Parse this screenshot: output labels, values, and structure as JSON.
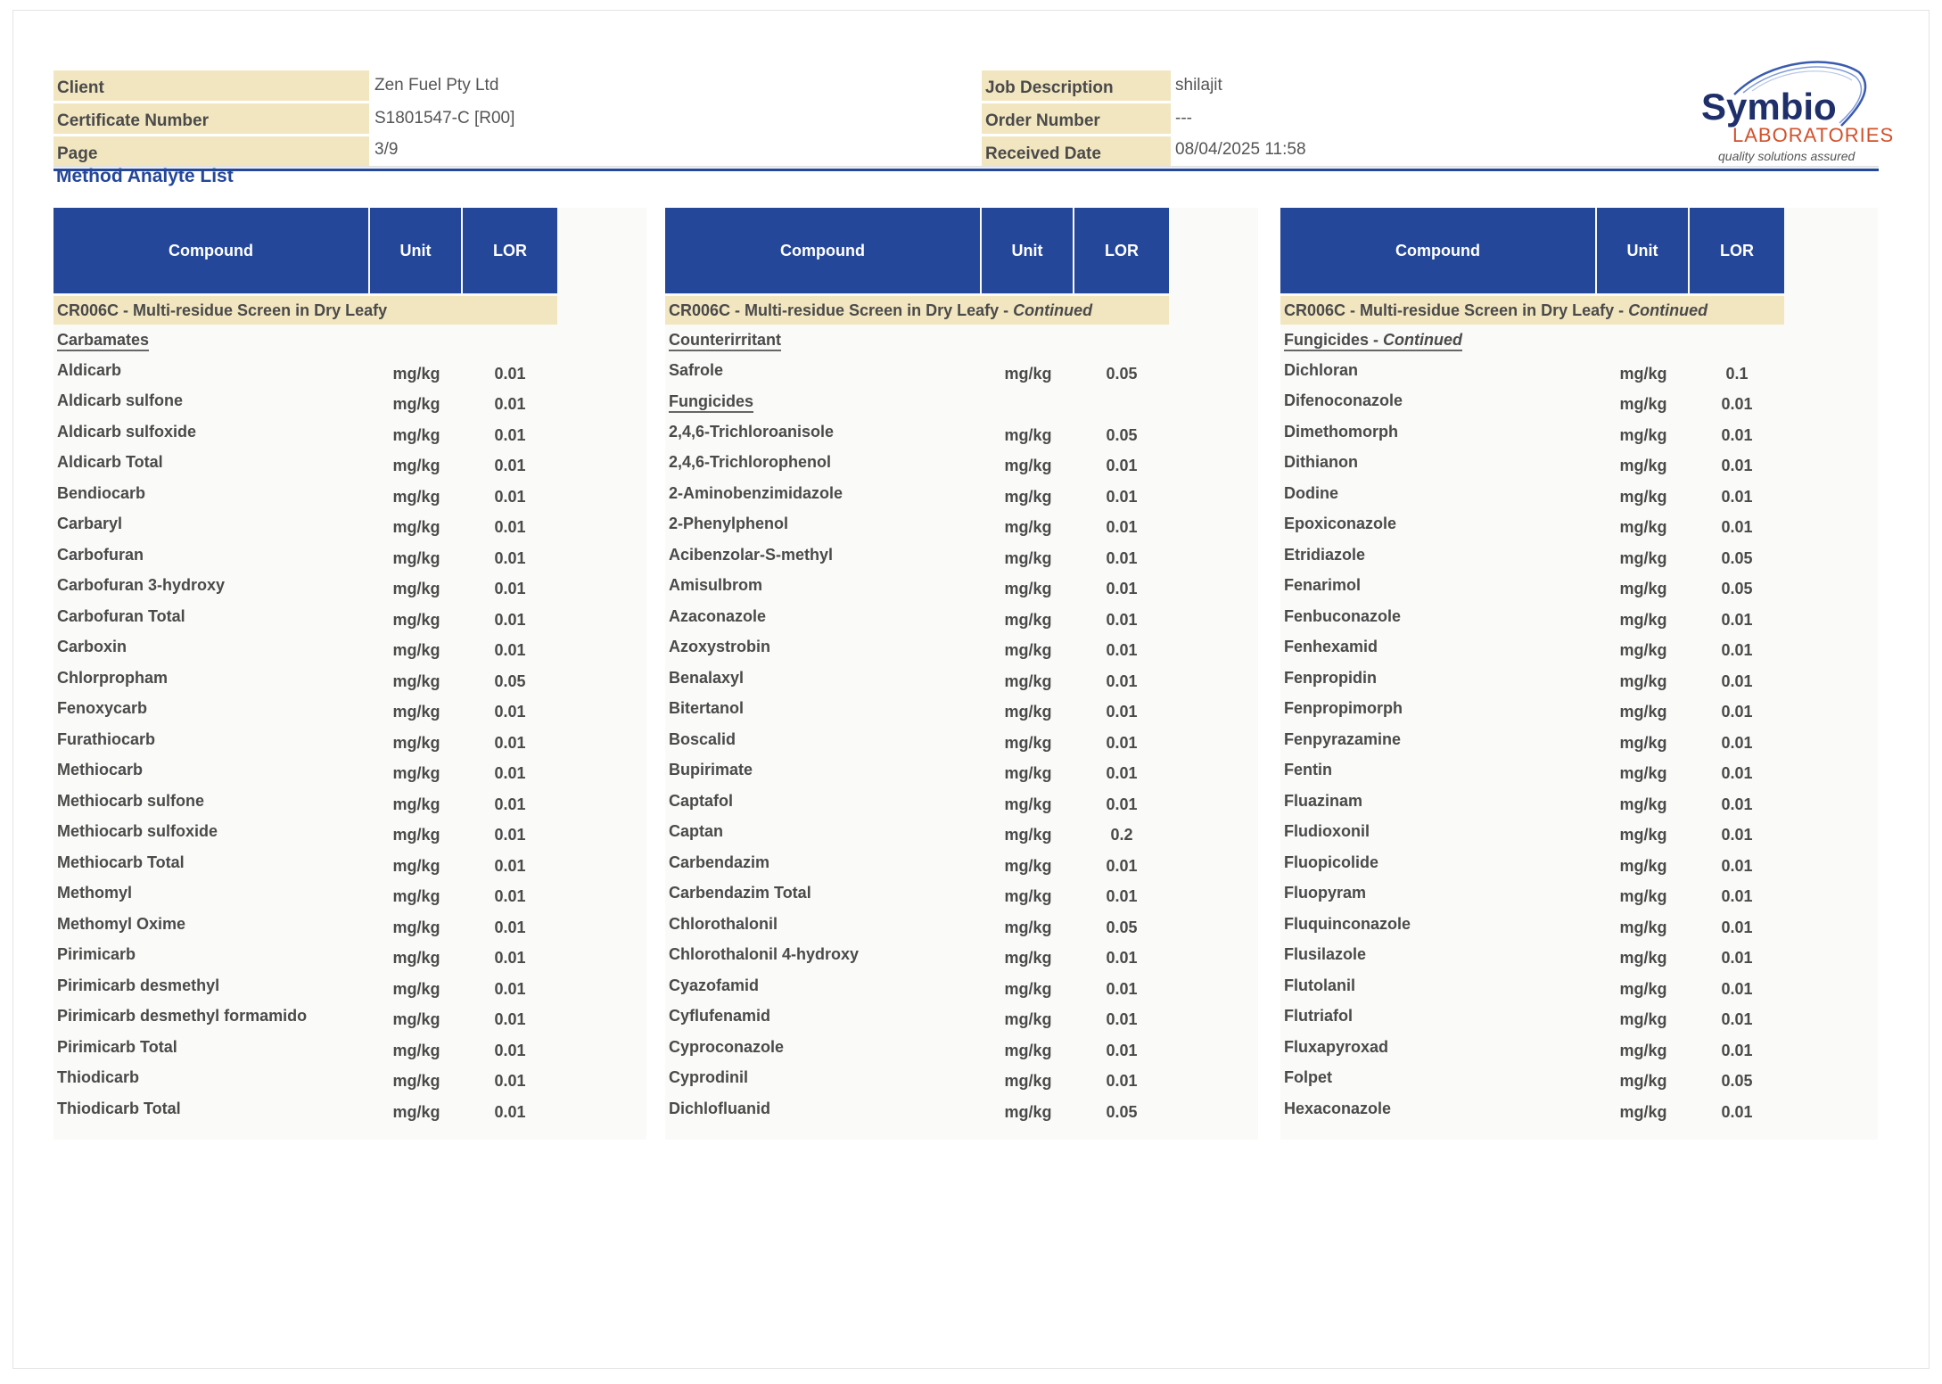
{
  "header": {
    "left": [
      {
        "label": "Client",
        "value": "Zen Fuel Pty Ltd"
      },
      {
        "label": "Certificate Number",
        "value": "S1801547-C [R00]"
      },
      {
        "label": "Page",
        "value": "3/9"
      }
    ],
    "right": [
      {
        "label": "Job Description",
        "value": "shilajit"
      },
      {
        "label": "Order Number",
        "value": "---"
      },
      {
        "label": "Received Date",
        "value": "08/04/2025 11:58"
      }
    ],
    "logo": {
      "name": "Symbio",
      "sub": "LABORATORIES",
      "tagline": "quality solutions assured"
    }
  },
  "section_title": "Method Analyte List",
  "colors": {
    "header_blue": "#24479a",
    "label_beige": "#f2e6c0",
    "logo_orange": "#d2502a"
  },
  "columns": {
    "compound": "Compound",
    "unit": "Unit",
    "lor": "LOR"
  },
  "tables": [
    {
      "method": "CR006C - Multi-residue Screen in Dry Leafy",
      "continued": "",
      "rows": [
        {
          "type": "sub",
          "name": "Carbamates",
          "suffix": ""
        },
        {
          "name": "Aldicarb",
          "unit": "mg/kg",
          "lor": "0.01"
        },
        {
          "name": "Aldicarb sulfone",
          "unit": "mg/kg",
          "lor": "0.01"
        },
        {
          "name": "Aldicarb sulfoxide",
          "unit": "mg/kg",
          "lor": "0.01"
        },
        {
          "name": "Aldicarb Total",
          "unit": "mg/kg",
          "lor": "0.01"
        },
        {
          "name": "Bendiocarb",
          "unit": "mg/kg",
          "lor": "0.01"
        },
        {
          "name": "Carbaryl",
          "unit": "mg/kg",
          "lor": "0.01"
        },
        {
          "name": "Carbofuran",
          "unit": "mg/kg",
          "lor": "0.01"
        },
        {
          "name": "Carbofuran 3-hydroxy",
          "unit": "mg/kg",
          "lor": "0.01"
        },
        {
          "name": "Carbofuran Total",
          "unit": "mg/kg",
          "lor": "0.01"
        },
        {
          "name": "Carboxin",
          "unit": "mg/kg",
          "lor": "0.01"
        },
        {
          "name": "Chlorpropham",
          "unit": "mg/kg",
          "lor": "0.05"
        },
        {
          "name": "Fenoxycarb",
          "unit": "mg/kg",
          "lor": "0.01"
        },
        {
          "name": "Furathiocarb",
          "unit": "mg/kg",
          "lor": "0.01"
        },
        {
          "name": "Methiocarb",
          "unit": "mg/kg",
          "lor": "0.01"
        },
        {
          "name": "Methiocarb sulfone",
          "unit": "mg/kg",
          "lor": "0.01"
        },
        {
          "name": "Methiocarb sulfoxide",
          "unit": "mg/kg",
          "lor": "0.01"
        },
        {
          "name": "Methiocarb Total",
          "unit": "mg/kg",
          "lor": "0.01"
        },
        {
          "name": "Methomyl",
          "unit": "mg/kg",
          "lor": "0.01"
        },
        {
          "name": "Methomyl Oxime",
          "unit": "mg/kg",
          "lor": "0.01"
        },
        {
          "name": "Pirimicarb",
          "unit": "mg/kg",
          "lor": "0.01"
        },
        {
          "name": "Pirimicarb desmethyl",
          "unit": "mg/kg",
          "lor": "0.01"
        },
        {
          "name": "Pirimicarb desmethyl formamido",
          "unit": "mg/kg",
          "lor": "0.01"
        },
        {
          "name": "Pirimicarb Total",
          "unit": "mg/kg",
          "lor": "0.01"
        },
        {
          "name": "Thiodicarb",
          "unit": "mg/kg",
          "lor": "0.01"
        },
        {
          "name": "Thiodicarb Total",
          "unit": "mg/kg",
          "lor": "0.01"
        }
      ]
    },
    {
      "method": "CR006C - Multi-residue Screen in Dry Leafy - ",
      "continued": "Continued",
      "rows": [
        {
          "type": "sub",
          "name": "Counterirritant",
          "suffix": ""
        },
        {
          "name": "Safrole",
          "unit": "mg/kg",
          "lor": "0.05"
        },
        {
          "type": "sub",
          "name": "Fungicides",
          "suffix": ""
        },
        {
          "name": "2,4,6-Trichloroanisole",
          "unit": "mg/kg",
          "lor": "0.05"
        },
        {
          "name": "2,4,6-Trichlorophenol",
          "unit": "mg/kg",
          "lor": "0.01"
        },
        {
          "name": "2-Aminobenzimidazole",
          "unit": "mg/kg",
          "lor": "0.01"
        },
        {
          "name": "2-Phenylphenol",
          "unit": "mg/kg",
          "lor": "0.01"
        },
        {
          "name": "Acibenzolar-S-methyl",
          "unit": "mg/kg",
          "lor": "0.01"
        },
        {
          "name": "Amisulbrom",
          "unit": "mg/kg",
          "lor": "0.01"
        },
        {
          "name": "Azaconazole",
          "unit": "mg/kg",
          "lor": "0.01"
        },
        {
          "name": "Azoxystrobin",
          "unit": "mg/kg",
          "lor": "0.01"
        },
        {
          "name": "Benalaxyl",
          "unit": "mg/kg",
          "lor": "0.01"
        },
        {
          "name": "Bitertanol",
          "unit": "mg/kg",
          "lor": "0.01"
        },
        {
          "name": "Boscalid",
          "unit": "mg/kg",
          "lor": "0.01"
        },
        {
          "name": "Bupirimate",
          "unit": "mg/kg",
          "lor": "0.01"
        },
        {
          "name": "Captafol",
          "unit": "mg/kg",
          "lor": "0.01"
        },
        {
          "name": "Captan",
          "unit": "mg/kg",
          "lor": "0.2"
        },
        {
          "name": "Carbendazim",
          "unit": "mg/kg",
          "lor": "0.01"
        },
        {
          "name": "Carbendazim Total",
          "unit": "mg/kg",
          "lor": "0.01"
        },
        {
          "name": "Chlorothalonil",
          "unit": "mg/kg",
          "lor": "0.05"
        },
        {
          "name": "Chlorothalonil 4-hydroxy",
          "unit": "mg/kg",
          "lor": "0.01"
        },
        {
          "name": "Cyazofamid",
          "unit": "mg/kg",
          "lor": "0.01"
        },
        {
          "name": "Cyflufenamid",
          "unit": "mg/kg",
          "lor": "0.01"
        },
        {
          "name": "Cyproconazole",
          "unit": "mg/kg",
          "lor": "0.01"
        },
        {
          "name": "Cyprodinil",
          "unit": "mg/kg",
          "lor": "0.01"
        },
        {
          "name": "Dichlofluanid",
          "unit": "mg/kg",
          "lor": "0.05"
        }
      ]
    },
    {
      "method": "CR006C - Multi-residue Screen in Dry Leafy - ",
      "continued": "Continued",
      "rows": [
        {
          "type": "sub",
          "name": "Fungicides - ",
          "suffix": "Continued"
        },
        {
          "name": "Dichloran",
          "unit": "mg/kg",
          "lor": "0.1"
        },
        {
          "name": "Difenoconazole",
          "unit": "mg/kg",
          "lor": "0.01"
        },
        {
          "name": "Dimethomorph",
          "unit": "mg/kg",
          "lor": "0.01"
        },
        {
          "name": "Dithianon",
          "unit": "mg/kg",
          "lor": "0.01"
        },
        {
          "name": "Dodine",
          "unit": "mg/kg",
          "lor": "0.01"
        },
        {
          "name": "Epoxiconazole",
          "unit": "mg/kg",
          "lor": "0.01"
        },
        {
          "name": "Etridiazole",
          "unit": "mg/kg",
          "lor": "0.05"
        },
        {
          "name": "Fenarimol",
          "unit": "mg/kg",
          "lor": "0.05"
        },
        {
          "name": "Fenbuconazole",
          "unit": "mg/kg",
          "lor": "0.01"
        },
        {
          "name": "Fenhexamid",
          "unit": "mg/kg",
          "lor": "0.01"
        },
        {
          "name": "Fenpropidin",
          "unit": "mg/kg",
          "lor": "0.01"
        },
        {
          "name": "Fenpropimorph",
          "unit": "mg/kg",
          "lor": "0.01"
        },
        {
          "name": "Fenpyrazamine",
          "unit": "mg/kg",
          "lor": "0.01"
        },
        {
          "name": "Fentin",
          "unit": "mg/kg",
          "lor": "0.01"
        },
        {
          "name": "Fluazinam",
          "unit": "mg/kg",
          "lor": "0.01"
        },
        {
          "name": "Fludioxonil",
          "unit": "mg/kg",
          "lor": "0.01"
        },
        {
          "name": "Fluopicolide",
          "unit": "mg/kg",
          "lor": "0.01"
        },
        {
          "name": "Fluopyram",
          "unit": "mg/kg",
          "lor": "0.01"
        },
        {
          "name": "Fluquinconazole",
          "unit": "mg/kg",
          "lor": "0.01"
        },
        {
          "name": "Flusilazole",
          "unit": "mg/kg",
          "lor": "0.01"
        },
        {
          "name": "Flutolanil",
          "unit": "mg/kg",
          "lor": "0.01"
        },
        {
          "name": "Flutriafol",
          "unit": "mg/kg",
          "lor": "0.01"
        },
        {
          "name": "Fluxapyroxad",
          "unit": "mg/kg",
          "lor": "0.01"
        },
        {
          "name": "Folpet",
          "unit": "mg/kg",
          "lor": "0.05"
        },
        {
          "name": "Hexaconazole",
          "unit": "mg/kg",
          "lor": "0.01"
        }
      ]
    }
  ]
}
